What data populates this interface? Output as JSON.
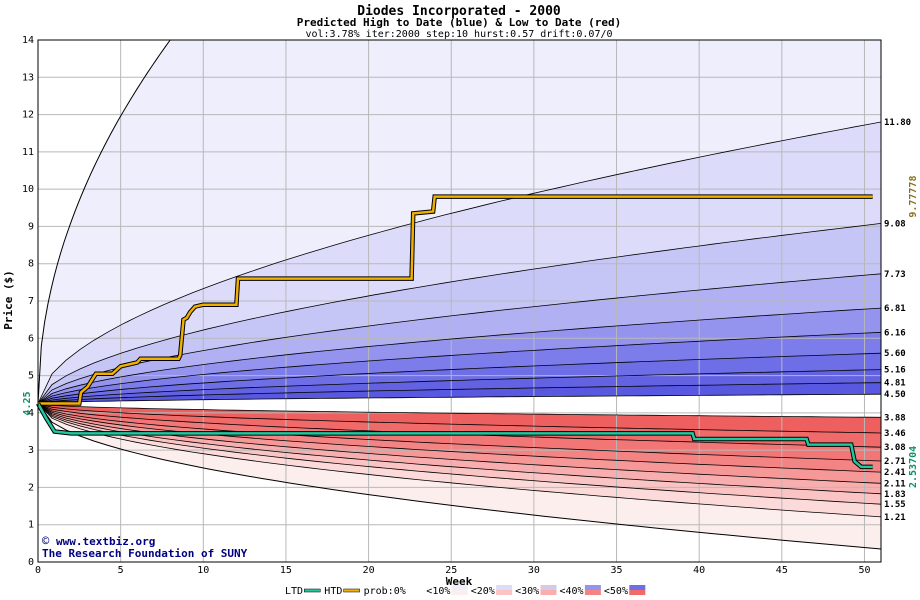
{
  "chart_data": {
    "type": "area",
    "title": "Diodes Incorporated - 2000",
    "subtitle": "Predicted High to Date (blue) &  Low to Date (red)",
    "params": "vol:3.78% iter:2000 step:10 hurst:0.57 drift:0.07/0",
    "xlabel": "Week",
    "ylabel": "Price ($)",
    "xlim": [
      0,
      51
    ],
    "ylim": [
      0,
      14
    ],
    "xticks": [
      0,
      5,
      10,
      15,
      20,
      25,
      30,
      35,
      40,
      45,
      50
    ],
    "yticks": [
      0,
      1,
      2,
      3,
      4,
      5,
      6,
      7,
      8,
      9,
      10,
      11,
      12,
      13,
      14
    ],
    "start_price": 4.25,
    "start_label": "4.25",
    "band_end_values": [
      11.8,
      9.08,
      7.73,
      6.81,
      6.16,
      5.6,
      5.16,
      4.81,
      4.5,
      3.88,
      3.46,
      3.08,
      2.71,
      2.41,
      2.11,
      1.83,
      1.55,
      1.21
    ],
    "band_end_labels": [
      "11.80",
      "9.08",
      "7.73",
      "6.81",
      "6.16",
      "5.60",
      "5.16",
      "4.81",
      "4.50",
      "3.88",
      "3.46",
      "3.08",
      "2.71",
      "2.41",
      "2.11",
      "1.83",
      "1.55",
      "1.21"
    ],
    "outer_curves": {
      "upper_reaches_14_at_week": 8,
      "lower_end_value": 0.35
    },
    "series": [
      {
        "name": "HTD",
        "color": "#f0b000",
        "final_label": "9.77778",
        "points": [
          [
            0,
            4.25
          ],
          [
            2.5,
            4.25
          ],
          [
            2.6,
            4.55
          ],
          [
            3,
            4.7
          ],
          [
            3.5,
            5.05
          ],
          [
            4.5,
            5.05
          ],
          [
            5,
            5.25
          ],
          [
            6,
            5.35
          ],
          [
            6.2,
            5.45
          ],
          [
            8.5,
            5.45
          ],
          [
            8.6,
            5.55
          ],
          [
            8.8,
            6.5
          ],
          [
            9,
            6.55
          ],
          [
            9.2,
            6.7
          ],
          [
            9.5,
            6.85
          ],
          [
            10,
            6.9
          ],
          [
            12,
            6.9
          ],
          [
            12.1,
            7.6
          ],
          [
            22.6,
            7.6
          ],
          [
            22.7,
            9.35
          ],
          [
            23.9,
            9.4
          ],
          [
            24,
            9.8
          ],
          [
            50.5,
            9.8
          ]
        ]
      },
      {
        "name": "LTD",
        "color": "#20c8a0",
        "final_label": "2.53704",
        "points": [
          [
            0,
            4.25
          ],
          [
            0.5,
            3.85
          ],
          [
            1,
            3.5
          ],
          [
            2,
            3.45
          ],
          [
            5,
            3.45
          ],
          [
            10,
            3.45
          ],
          [
            20,
            3.45
          ],
          [
            30,
            3.45
          ],
          [
            39.6,
            3.45
          ],
          [
            39.7,
            3.3
          ],
          [
            46.5,
            3.3
          ],
          [
            46.6,
            3.15
          ],
          [
            49.2,
            3.15
          ],
          [
            49.4,
            2.7
          ],
          [
            49.8,
            2.55
          ],
          [
            50.5,
            2.55
          ]
        ]
      }
    ],
    "legend": {
      "position": "bottom",
      "items": [
        "LTD",
        "HTD",
        "prob:0%",
        "<10%",
        "<20%",
        "<30%",
        "<40%",
        "<50%"
      ]
    },
    "credit_line1": "www.textbiz.org",
    "credit_line2": "The Research Foundation of SUNY",
    "colors": {
      "blue_bands": [
        "#eeeefc",
        "#dcdcfa",
        "#c6c6f6",
        "#b0b0f2",
        "#9494ee",
        "#7c7cea",
        "#6e6ee6",
        "#6262e2",
        "#5858e0"
      ],
      "red_bands": [
        "#fdeeee",
        "#fcdada",
        "#fac4c4",
        "#f8aeae",
        "#f69898",
        "#f48484",
        "#f27676",
        "#f06a6a",
        "#ee6060"
      ],
      "htd_label": "#8a7020",
      "ltd_label": "#10906a",
      "credit": "#000080"
    }
  }
}
